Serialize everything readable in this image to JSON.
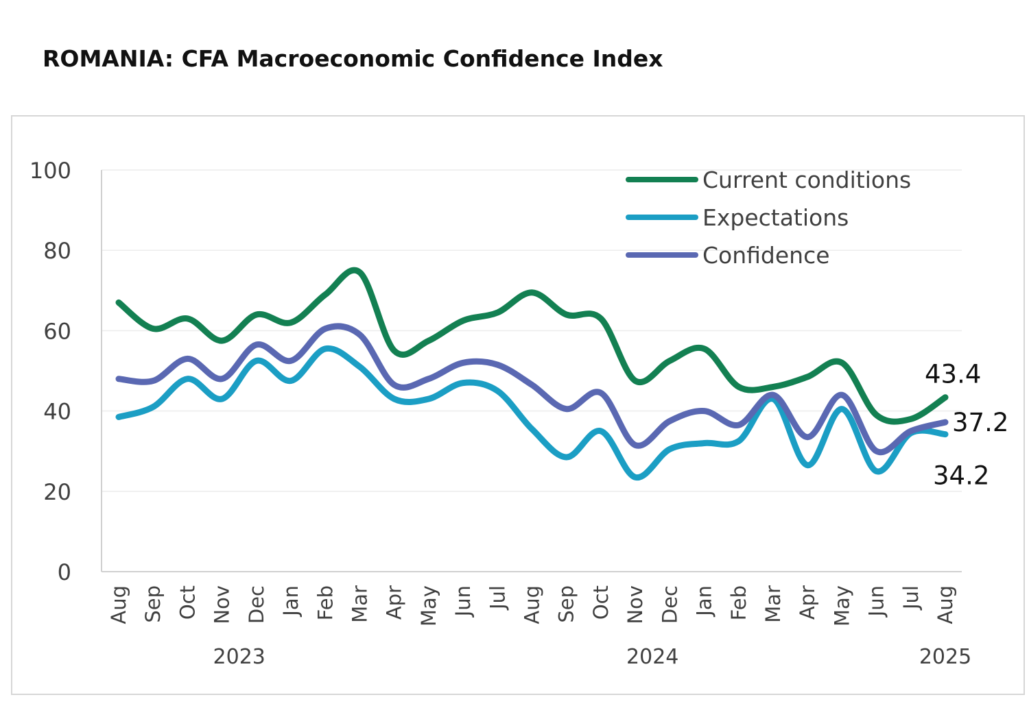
{
  "title": "ROMANIA: CFA Macroeconomic Confidence Index",
  "chart_data": {
    "type": "line",
    "title": "ROMANIA: CFA Macroeconomic Confidence Index",
    "xlabel": "",
    "ylabel": "",
    "ylim": [
      0,
      100
    ],
    "yticks": [
      0,
      20,
      40,
      60,
      80,
      100
    ],
    "grid": true,
    "legend_position": "top-right",
    "categories": [
      "Aug",
      "Sep",
      "Oct",
      "Nov",
      "Dec",
      "Jan",
      "Feb",
      "Mar",
      "Apr",
      "May",
      "Jun",
      "Jul",
      "Aug",
      "Sep",
      "Oct",
      "Nov",
      "Dec",
      "Jan",
      "Feb",
      "Mar",
      "Apr",
      "May",
      "Jun",
      "Jul",
      "Aug"
    ],
    "year_labels": [
      {
        "label": "2023",
        "month_index": 3.5
      },
      {
        "label": "2024",
        "month_index": 15.5
      },
      {
        "label": "2025",
        "month_index": 24
      }
    ],
    "series": [
      {
        "name": "Current conditions",
        "color": "#138052",
        "values": [
          67,
          60.5,
          63,
          57.5,
          64,
          62,
          69,
          74.5,
          55,
          57.5,
          62.5,
          64.5,
          69.5,
          64,
          63,
          47.5,
          52.5,
          55.5,
          46,
          46,
          48.5,
          52,
          39,
          38,
          43.4
        ]
      },
      {
        "name": "Expectations",
        "color": "#1b9ec4",
        "values": [
          38.5,
          41,
          48,
          43,
          52.5,
          47.5,
          55.5,
          51,
          43,
          43,
          47,
          45,
          35.5,
          28.5,
          35,
          23.5,
          30.5,
          32,
          32.5,
          43,
          26.5,
          40.5,
          25,
          34.5,
          34.2
        ]
      },
      {
        "name": "Confidence",
        "color": "#5a68b2",
        "values": [
          48,
          47.5,
          53,
          48,
          56.5,
          52.5,
          60.5,
          59,
          46.5,
          48,
          52,
          51.5,
          46.5,
          40.5,
          44.5,
          31.5,
          37.5,
          40,
          36.5,
          44,
          33.5,
          44,
          30,
          35,
          37.2
        ]
      }
    ],
    "end_labels": [
      {
        "series": "Current conditions",
        "text": "43.4"
      },
      {
        "series": "Confidence",
        "text": "37.2"
      },
      {
        "series": "Expectations",
        "text": "34.2"
      }
    ]
  }
}
